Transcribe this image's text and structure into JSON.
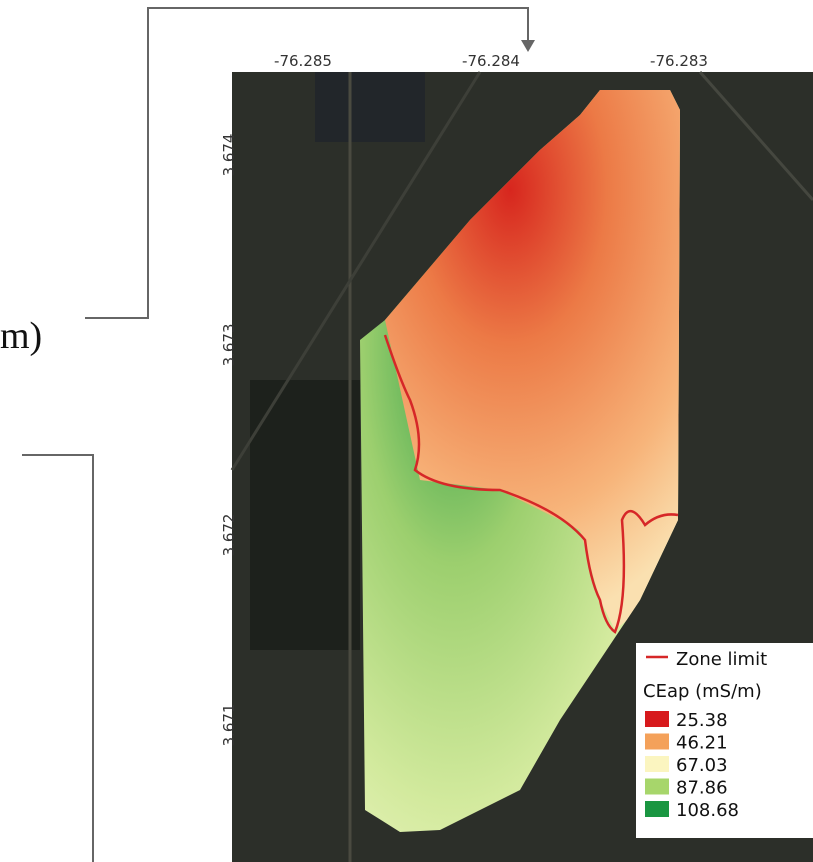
{
  "left_text": "m)",
  "map": {
    "x_ticks": [
      "-76.285",
      "-76.284",
      "-76.283"
    ],
    "y_ticks": [
      "3.674",
      "3.673",
      "3.672",
      "3.671"
    ],
    "legend": {
      "line_label": "Zone limit",
      "line_color": "#d62728",
      "title": "CEap (mS/m)",
      "items": [
        {
          "label": "25.38",
          "color": "#d7191c"
        },
        {
          "label": "46.21",
          "color": "#f4a15a"
        },
        {
          "label": "67.03",
          "color": "#fbf5c0"
        },
        {
          "label": "87.86",
          "color": "#a7d66b"
        },
        {
          "label": "108.68",
          "color": "#1a9641"
        }
      ]
    }
  }
}
